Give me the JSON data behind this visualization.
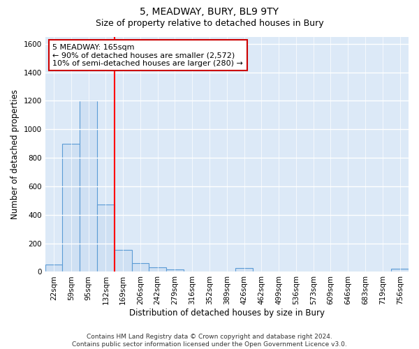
{
  "title": "5, MEADWAY, BURY, BL9 9TY",
  "subtitle": "Size of property relative to detached houses in Bury",
  "xlabel": "Distribution of detached houses by size in Bury",
  "ylabel": "Number of detached properties",
  "categories": [
    "22sqm",
    "59sqm",
    "95sqm",
    "132sqm",
    "169sqm",
    "206sqm",
    "242sqm",
    "279sqm",
    "316sqm",
    "352sqm",
    "389sqm",
    "426sqm",
    "462sqm",
    "499sqm",
    "536sqm",
    "573sqm",
    "609sqm",
    "646sqm",
    "683sqm",
    "719sqm",
    "756sqm"
  ],
  "values": [
    50,
    900,
    1200,
    470,
    155,
    60,
    30,
    15,
    0,
    0,
    0,
    25,
    0,
    0,
    0,
    0,
    0,
    0,
    0,
    0,
    20
  ],
  "bar_color": "#cfe0f3",
  "bar_edge_color": "#5b9bd5",
  "background_color": "#dce9f7",
  "grid_color": "#ffffff",
  "red_line_x": 3.5,
  "annotation_text": "5 MEADWAY: 165sqm\n← 90% of detached houses are smaller (2,572)\n10% of semi-detached houses are larger (280) →",
  "annotation_box_color": "#ffffff",
  "annotation_box_edge_color": "#cc0000",
  "ylim": [
    0,
    1650
  ],
  "yticks": [
    0,
    200,
    400,
    600,
    800,
    1000,
    1200,
    1400,
    1600
  ],
  "footer_text": "Contains HM Land Registry data © Crown copyright and database right 2024.\nContains public sector information licensed under the Open Government Licence v3.0.",
  "title_fontsize": 10,
  "subtitle_fontsize": 9,
  "xlabel_fontsize": 8.5,
  "ylabel_fontsize": 8.5,
  "tick_fontsize": 7.5,
  "annotation_fontsize": 8,
  "footer_fontsize": 6.5
}
